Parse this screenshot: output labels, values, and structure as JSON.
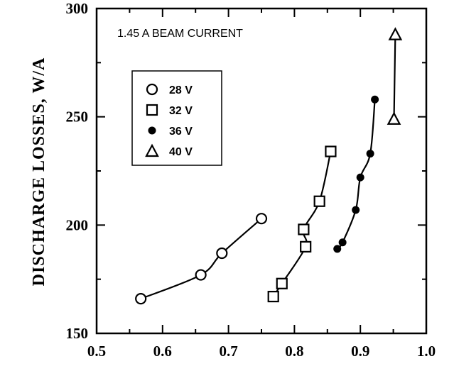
{
  "chart_data": {
    "type": "line",
    "ylabel": "DISCHARGE LOSSES,    W/A",
    "annotation": "1.45 A BEAM CURRENT",
    "xlim": [
      0.5,
      1.0
    ],
    "ylim": [
      150,
      300
    ],
    "x_ticks": [
      "0.5",
      "0.6",
      "0.7",
      "0.8",
      "0.9",
      "1.0"
    ],
    "y_ticks": [
      "150",
      "200",
      "250",
      "300"
    ],
    "grid": false,
    "legend_position": "upper-left",
    "series": [
      {
        "name": "28 V",
        "marker": "circle",
        "x": [
          0.567,
          0.658,
          0.69,
          0.75
        ],
        "y": [
          166,
          177,
          187,
          203
        ]
      },
      {
        "name": "32 V",
        "marker": "square",
        "x": [
          0.768,
          0.781,
          0.817,
          0.814,
          0.838,
          0.855
        ],
        "y": [
          167,
          173,
          190,
          198,
          211,
          234
        ]
      },
      {
        "name": "36 V",
        "marker": "dot",
        "x": [
          0.865,
          0.873,
          0.893,
          0.9,
          0.915,
          0.922
        ],
        "y": [
          189,
          192,
          207,
          222,
          233,
          258
        ]
      },
      {
        "name": "40 V",
        "marker": "triangle",
        "x": [
          0.951,
          0.953
        ],
        "y": [
          249,
          288
        ]
      }
    ]
  }
}
